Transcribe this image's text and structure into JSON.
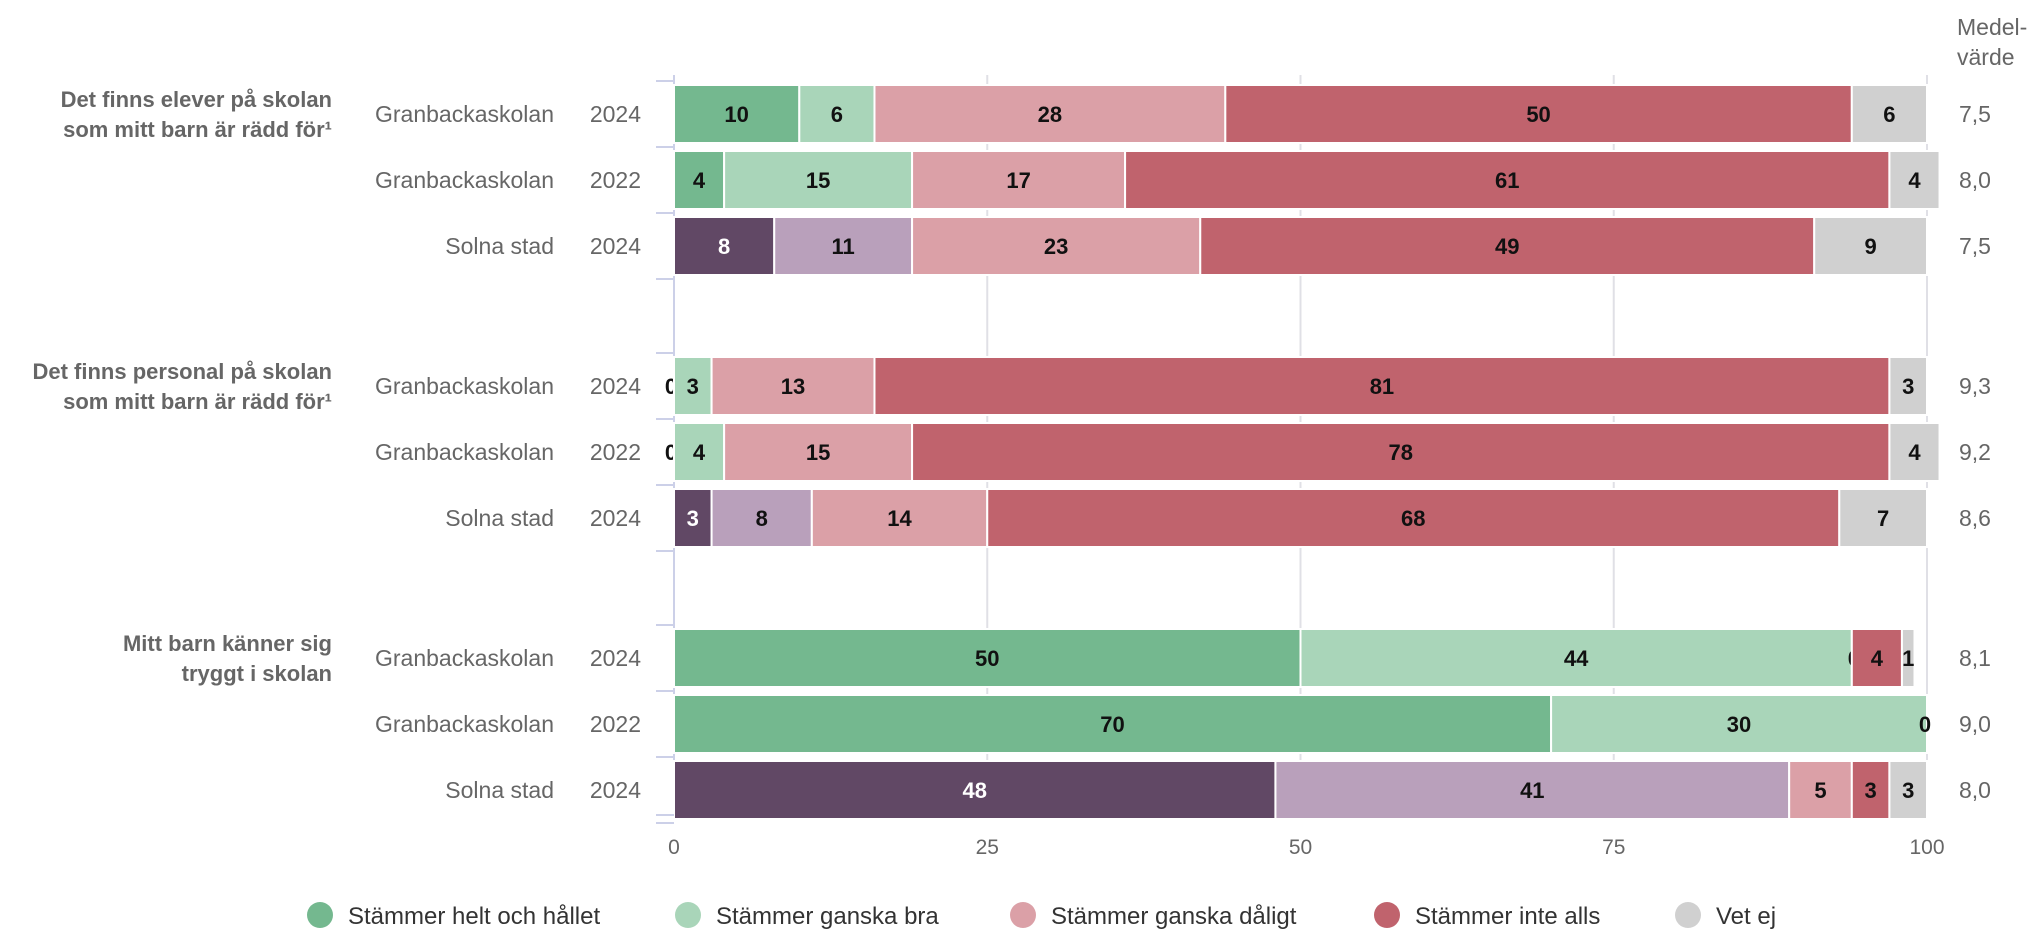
{
  "chart_data": {
    "type": "bar",
    "orientation": "horizontal",
    "stacked": true,
    "xlim": [
      0,
      100
    ],
    "x_ticks": [
      "0",
      "25",
      "50",
      "75",
      "100"
    ],
    "grid": true,
    "legend_position": "bottom",
    "mean_header": [
      "Medel-",
      "värde"
    ],
    "series": [
      {
        "name": "Stämmer helt och hållet",
        "color": "#74b88f",
        "school_color": "#74b88f",
        "city_color": "#614865"
      },
      {
        "name": "Stämmer ganska bra",
        "color": "#a9d5b9",
        "school_color": "#a9d5b9",
        "city_color": "#b9a0bb"
      },
      {
        "name": "Stämmer ganska dåligt",
        "color": "#dba0a7",
        "school_color": "#dba0a7",
        "city_color": "#dba0a7"
      },
      {
        "name": "Stämmer inte alls",
        "color": "#c0636d",
        "school_color": "#c0636d",
        "city_color": "#c0636d"
      },
      {
        "name": "Vet ej",
        "color": "#d0d0d0",
        "school_color": "#d0d0d0",
        "city_color": "#d0d0d0"
      }
    ],
    "groups": [
      {
        "question": [
          "Det finns elever på skolan",
          "som mitt barn är rädd för¹"
        ],
        "rows": [
          {
            "unit": "Granbackaskolan",
            "year": "2024",
            "type": "school",
            "values": [
              10,
              6,
              28,
              50,
              6
            ],
            "mean": "7,5"
          },
          {
            "unit": "Granbackaskolan",
            "year": "2022",
            "type": "school",
            "values": [
              4,
              15,
              17,
              61,
              4
            ],
            "mean": "8,0"
          },
          {
            "unit": "Solna stad",
            "year": "2024",
            "type": "city",
            "values": [
              8,
              11,
              23,
              49,
              9
            ],
            "mean": "7,5"
          }
        ]
      },
      {
        "question": [
          "Det finns personal på skolan",
          "som mitt barn är rädd för¹"
        ],
        "rows": [
          {
            "unit": "Granbackaskolan",
            "year": "2024",
            "type": "school",
            "values": [
              0,
              3,
              13,
              81,
              3
            ],
            "mean": "9,3"
          },
          {
            "unit": "Granbackaskolan",
            "year": "2022",
            "type": "school",
            "values": [
              0,
              4,
              15,
              78,
              4
            ],
            "mean": "9,2"
          },
          {
            "unit": "Solna stad",
            "year": "2024",
            "type": "city",
            "values": [
              3,
              8,
              14,
              68,
              7
            ],
            "mean": "8,6"
          }
        ]
      },
      {
        "question": [
          "Mitt barn känner sig",
          "tryggt i skolan"
        ],
        "rows": [
          {
            "unit": "Granbackaskolan",
            "year": "2024",
            "type": "school",
            "values": [
              50,
              44,
              0,
              4,
              1
            ],
            "mean": "8,1"
          },
          {
            "unit": "Granbackaskolan",
            "year": "2022",
            "type": "school",
            "values": [
              70,
              30,
              0,
              null,
              null
            ],
            "mean": "9,0"
          },
          {
            "unit": "Solna stad",
            "year": "2024",
            "type": "city",
            "values": [
              48,
              41,
              5,
              3,
              3
            ],
            "mean": "8,0"
          }
        ]
      }
    ]
  }
}
